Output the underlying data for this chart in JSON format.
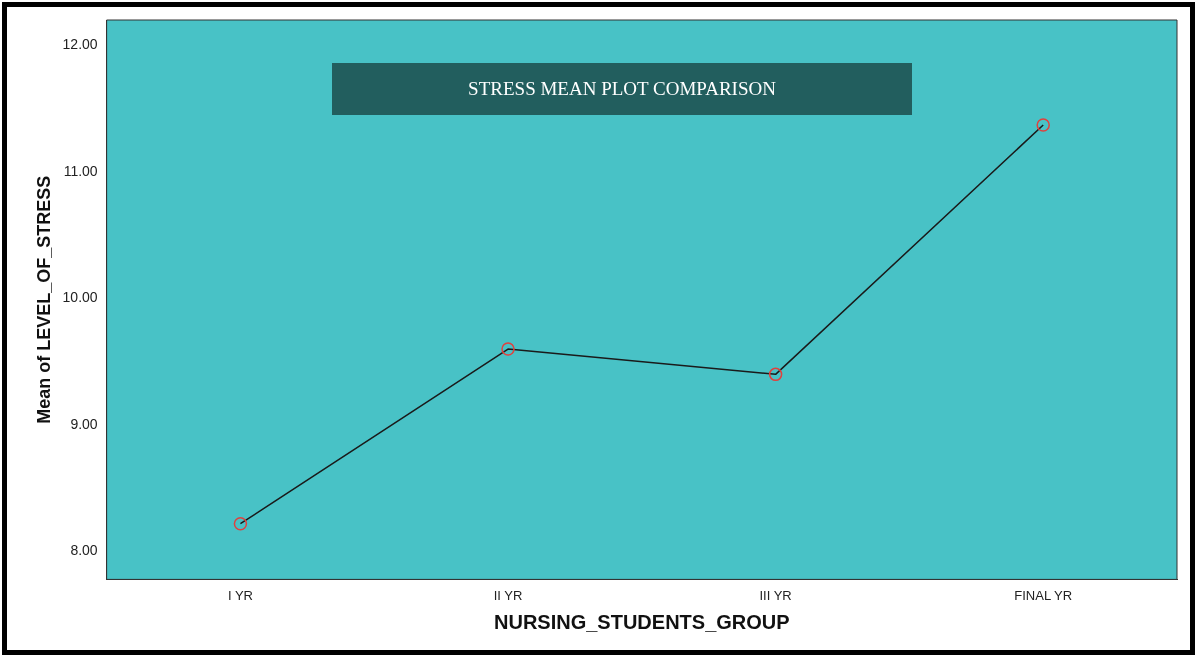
{
  "chart_data": {
    "type": "line",
    "title": "STRESS MEAN PLOT COMPARISON",
    "xlabel": "NURSING_STUDENTS_GROUP",
    "ylabel": "Mean of LEVEL_OF_STRESS",
    "categories": [
      "I YR",
      "II YR",
      "III YR",
      "FINAL YR"
    ],
    "series": [
      {
        "color": "#1a1a1a",
        "values": [
          8.22,
          9.6,
          9.4,
          11.37
        ]
      }
    ],
    "ylim": [
      7.78,
      12.2
    ],
    "yticks": [
      {
        "value": 8,
        "label": "8.00"
      },
      {
        "value": 9,
        "label": "9.00"
      },
      {
        "value": 10,
        "label": "10.00"
      },
      {
        "value": 11,
        "label": "11.00"
      },
      {
        "value": 12,
        "label": "12.00"
      }
    ],
    "grid": false,
    "legend": false,
    "marker": "circle",
    "line_style": "solid"
  }
}
